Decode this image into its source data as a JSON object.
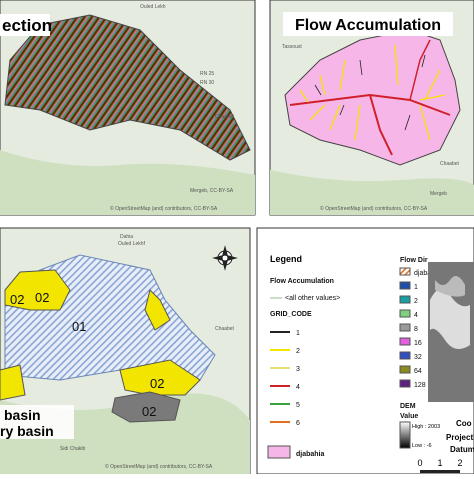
{
  "top_left": {
    "title": "ection",
    "labels": [
      "RN 25",
      "RN 30",
      "Chaabet",
      "Mergeb, CC-BY-SA",
      "© OpenStreetMap (and) contributors, CC-BY-SA",
      "Ouled Lekh"
    ]
  },
  "top_right": {
    "title": "Flow Accumulation",
    "labels": [
      "Tassoust",
      "Chaabet",
      "Mergeb",
      "© OpenStreetMap (and) contributors, CC-BY-SA"
    ]
  },
  "bottom_left": {
    "zones": [
      "02",
      "01",
      "02",
      "02",
      "02"
    ],
    "captions": [
      "basin",
      "ry basin"
    ],
    "labels": [
      "Dahia",
      "Ouled Lekhf",
      "Chaabet",
      "Sidi Chakib",
      "© OpenStreetMap (and) contributors, CC-BY-SA"
    ]
  },
  "legend": {
    "title": "Legend",
    "layer": "Flow Accumulation",
    "other": "<all other values>",
    "field": "GRID_CODE",
    "codes": [
      {
        "label": "1",
        "color": "#222222"
      },
      {
        "label": "2",
        "color": "#f2e600"
      },
      {
        "label": "3",
        "color": "#e8e070"
      },
      {
        "label": "4",
        "color": "#d0202a"
      },
      {
        "label": "5",
        "color": "#3aa03a"
      },
      {
        "label": "6",
        "color": "#e07020"
      }
    ],
    "basin": "djabahia",
    "basin_color": "#f7b6e8"
  },
  "flow_dir": {
    "title": "Flow Dir",
    "basin": "djabahia",
    "codes": [
      {
        "label": "1",
        "color": "#1f4fa8"
      },
      {
        "label": "2",
        "color": "#1aa0a0"
      },
      {
        "label": "4",
        "color": "#7fd17f"
      },
      {
        "label": "8",
        "color": "#9a9a9a"
      },
      {
        "label": "16",
        "color": "#e060e0"
      },
      {
        "label": "32",
        "color": "#3050c0"
      },
      {
        "label": "64",
        "color": "#8a8a20"
      },
      {
        "label": "128",
        "color": "#602080"
      }
    ]
  },
  "dem": {
    "title": "DEM",
    "field": "Value",
    "high": "High : 2003",
    "low": "Low : -6",
    "notes": [
      "Coo",
      "Projection",
      "Datum"
    ],
    "scale": [
      "0",
      "1",
      "2"
    ]
  }
}
